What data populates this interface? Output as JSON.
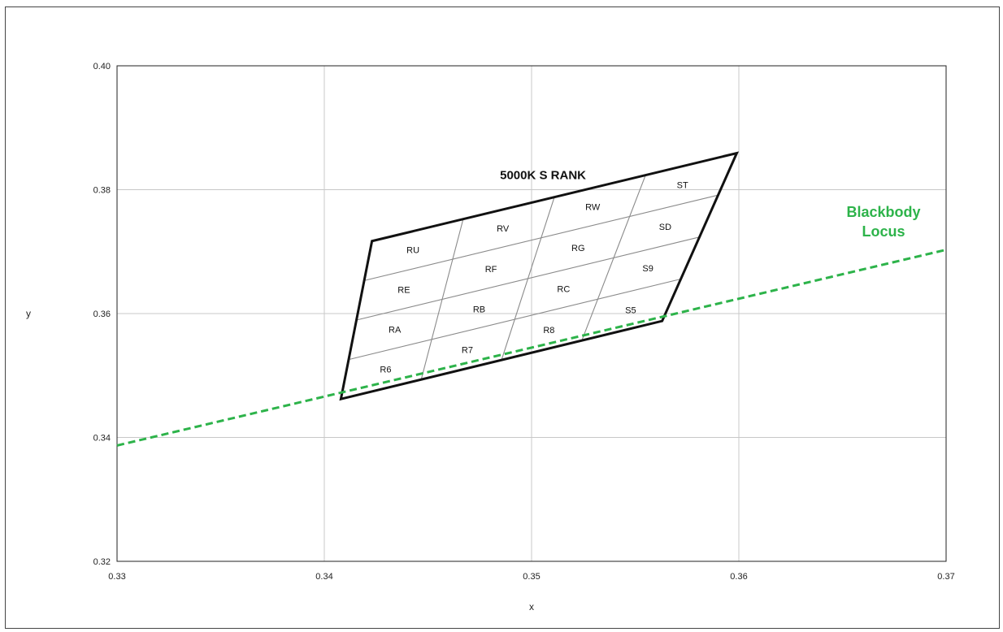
{
  "chart_data": {
    "type": "scatter",
    "title": "",
    "xlabel": "x",
    "ylabel": "y",
    "xlim": [
      0.33,
      0.37
    ],
    "ylim": [
      0.32,
      0.4
    ],
    "x_ticks": [
      "0.33",
      "0.34",
      "0.35",
      "0.36",
      "0.37"
    ],
    "y_ticks": [
      "0.32",
      "0.34",
      "0.36",
      "0.38",
      "0.40"
    ],
    "grid": true,
    "region": {
      "name": "5000K S RANK",
      "corners": {
        "bottom_left": [
          0.3408,
          0.3462
        ],
        "bottom_right": [
          0.3563,
          0.3588
        ],
        "top_right": [
          0.3599,
          0.3859
        ],
        "top_left": [
          0.3423,
          0.3717
        ]
      },
      "columns": 4,
      "rows": 4,
      "bins": [
        [
          "R6",
          "R7",
          "R8",
          "S5"
        ],
        [
          "RA",
          "RB",
          "RC",
          "S9"
        ],
        [
          "RE",
          "RF",
          "RG",
          "SD"
        ],
        [
          "RU",
          "RV",
          "RW",
          "ST"
        ]
      ]
    },
    "blackbody_locus": {
      "name": "Blackbody Locus",
      "color": "#2db34a",
      "points": [
        [
          0.33,
          0.3387
        ],
        [
          0.37,
          0.3703
        ]
      ]
    }
  }
}
